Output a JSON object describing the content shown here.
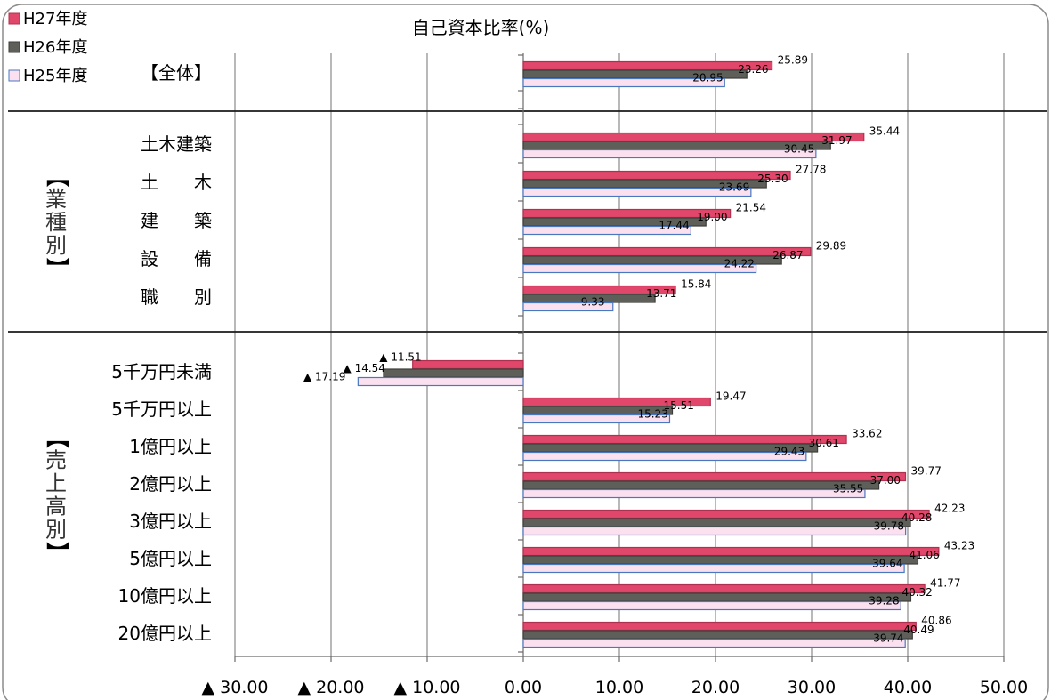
{
  "chart_data": {
    "type": "bar",
    "orientation": "horizontal",
    "title": "自己資本比率(%)",
    "legend": [
      "H27年度",
      "H26年度",
      "H25年度"
    ],
    "legend_position": "top-left",
    "series": [
      {
        "name": "H27年度",
        "color": "#e0476a"
      },
      {
        "name": "H26年度",
        "color": "#5f5f5a"
      },
      {
        "name": "H25年度",
        "color": "#fbe0ef"
      }
    ],
    "groups": [
      {
        "label": "【全体】",
        "vertical_label": "",
        "items": [
          {
            "category": "",
            "values": [
              25.89,
              23.26,
              20.95
            ],
            "labels": [
              "25.89",
              "23.26",
              "20.95"
            ]
          }
        ]
      },
      {
        "label": "",
        "vertical_label": "業種別",
        "items": [
          {
            "category": "土木建築",
            "values": [
              35.44,
              31.97,
              30.45
            ],
            "labels": [
              "35.44",
              "31.97",
              "30.45"
            ]
          },
          {
            "category": "土　　木",
            "values": [
              27.78,
              25.3,
              23.69
            ],
            "labels": [
              "27.78",
              "25.30",
              "23.69"
            ]
          },
          {
            "category": "建　　築",
            "values": [
              21.54,
              19.0,
              17.44
            ],
            "labels": [
              "21.54",
              "19.00",
              "17.44"
            ]
          },
          {
            "category": "設　　備",
            "values": [
              29.89,
              26.87,
              24.22
            ],
            "labels": [
              "29.89",
              "26.87",
              "24.22"
            ]
          },
          {
            "category": "職　　別",
            "values": [
              15.84,
              13.71,
              9.33
            ],
            "labels": [
              "15.84",
              "13.71",
              "9.33"
            ]
          }
        ]
      },
      {
        "label": "",
        "vertical_label": "売上高別",
        "items": [
          {
            "category": "5千万円未満",
            "values": [
              -11.51,
              -14.54,
              -17.19
            ],
            "labels": [
              "▲ 11.51",
              "▲ 14.54",
              "▲ 17.19"
            ]
          },
          {
            "category": "5千万円以上",
            "values": [
              19.47,
              15.51,
              15.23
            ],
            "labels": [
              "19.47",
              "15.51",
              "15.23"
            ]
          },
          {
            "category": "1億円以上",
            "values": [
              33.62,
              30.61,
              29.43
            ],
            "labels": [
              "33.62",
              "30.61",
              "29.43"
            ]
          },
          {
            "category": "2億円以上",
            "values": [
              39.77,
              37.0,
              35.55
            ],
            "labels": [
              "39.77",
              "37.00",
              "35.55"
            ]
          },
          {
            "category": "3億円以上",
            "values": [
              42.23,
              40.28,
              39.78
            ],
            "labels": [
              "42.23",
              "40.28",
              "39.78"
            ]
          },
          {
            "category": "5億円以上",
            "values": [
              43.23,
              41.06,
              39.64
            ],
            "labels": [
              "43.23",
              "41.06",
              "39.64"
            ]
          },
          {
            "category": "10億円以上",
            "values": [
              41.77,
              40.32,
              39.28
            ],
            "labels": [
              "41.77",
              "40.32",
              "39.28"
            ]
          },
          {
            "category": "20億円以上",
            "values": [
              40.86,
              40.49,
              39.74
            ],
            "labels": [
              "40.86",
              "40.49",
              "39.74"
            ]
          }
        ]
      }
    ],
    "xlim": [
      -30,
      50
    ],
    "xticks": [
      {
        "value": -30,
        "label": "▲ 30.00"
      },
      {
        "value": -20,
        "label": "▲ 20.00"
      },
      {
        "value": -10,
        "label": "▲ 10.00"
      },
      {
        "value": 0,
        "label": "0.00"
      },
      {
        "value": 10,
        "label": "10.00"
      },
      {
        "value": 20,
        "label": "20.00"
      },
      {
        "value": 30,
        "label": "30.00"
      },
      {
        "value": 40,
        "label": "40.00"
      },
      {
        "value": 50,
        "label": "50.00"
      }
    ],
    "grid": true
  }
}
